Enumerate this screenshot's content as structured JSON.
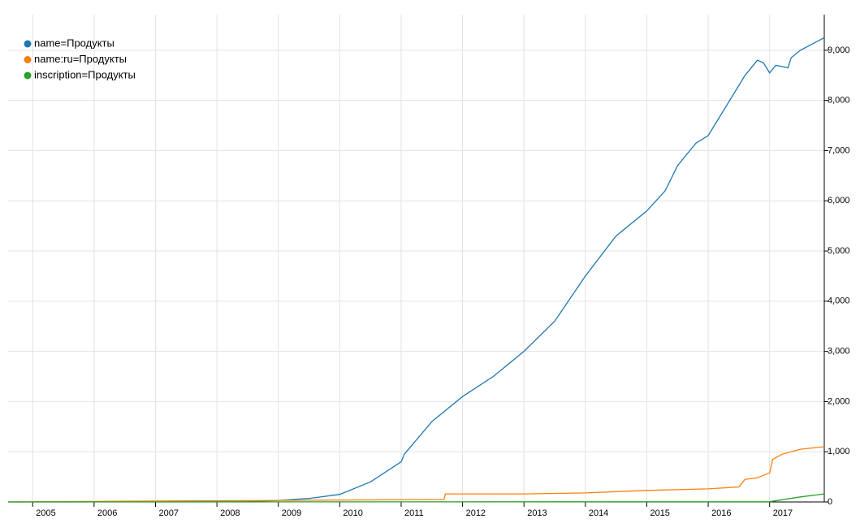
{
  "chart_data": {
    "type": "line",
    "xlim": [
      2004.6,
      2017.89
    ],
    "xticks": [
      2005,
      2006,
      2007,
      2008,
      2009,
      2010,
      2011,
      2012,
      2013,
      2014,
      2015,
      2016,
      2017
    ],
    "ylim": [
      0,
      9710
    ],
    "yticks": [
      0,
      {
        "value": 1000,
        "label": "1,000"
      },
      {
        "value": 2000,
        "label": "2,000"
      },
      {
        "value": 3000,
        "label": "3,000"
      },
      {
        "value": 4000,
        "label": "4,000"
      },
      {
        "value": 5000,
        "label": "5,000"
      },
      {
        "value": 6000,
        "label": "6,000"
      },
      {
        "value": 7000,
        "label": "7,000"
      },
      {
        "value": 8000,
        "label": "8,000"
      },
      {
        "value": 9000,
        "label": "9,000"
      }
    ],
    "grid": true,
    "legend": "top-left",
    "series": [
      {
        "name": "name=Продукты",
        "color": "#1f77b4",
        "x": [
          2004.6,
          2008.5,
          2009,
          2009.5,
          2010,
          2010.5,
          2011,
          2011.05,
          2011.5,
          2012,
          2012.5,
          2013,
          2013.5,
          2014,
          2014.5,
          2015,
          2015.3,
          2015.5,
          2015.8,
          2016,
          2016.3,
          2016.6,
          2016.8,
          2016.9,
          2017,
          2017.1,
          2017.3,
          2017.35,
          2017.5,
          2017.89
        ],
        "values": [
          0,
          5,
          30,
          70,
          150,
          400,
          800,
          950,
          1600,
          2100,
          2500,
          3000,
          3600,
          4500,
          5300,
          5800,
          6200,
          6700,
          7150,
          7300,
          7900,
          8500,
          8800,
          8750,
          8550,
          8700,
          8650,
          8850,
          9000,
          9250
        ]
      },
      {
        "name": "name:ru=Продукты",
        "color": "#ff7f0e",
        "x": [
          2004.6,
          2011.7,
          2011.72,
          2013,
          2014,
          2015,
          2016,
          2016.5,
          2016.6,
          2016.8,
          2017,
          2017.05,
          2017.2,
          2017.5,
          2017.89
        ],
        "values": [
          0,
          50,
          160,
          160,
          180,
          230,
          260,
          300,
          450,
          480,
          580,
          850,
          950,
          1050,
          1100
        ]
      },
      {
        "name": "inscription=Продукты",
        "color": "#2ca02c",
        "x": [
          2004.6,
          2017,
          2017.5,
          2017.89
        ],
        "values": [
          0,
          5,
          100,
          160
        ]
      }
    ]
  }
}
